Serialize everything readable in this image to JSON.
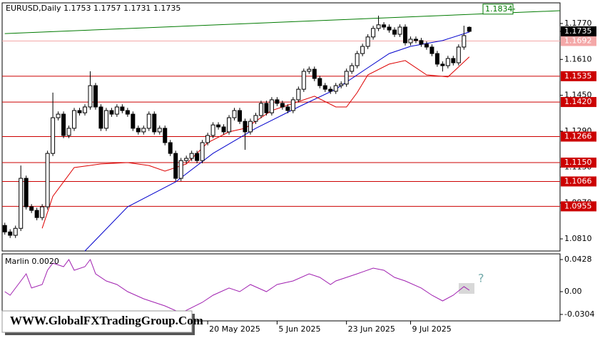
{
  "chart_data": [
    {
      "type": "candlestick",
      "title": "EURUSD,Daily  1.1753 1.1757 1.1731 1.1735",
      "xlim": [
        -0.5,
        104
      ],
      "xticks": [
        {
          "value": 38,
          "label": "20 May 2025"
        },
        {
          "value": 51,
          "label": "5 Jun 2025"
        },
        {
          "value": 64,
          "label": "23 Jun 2025"
        },
        {
          "value": 76,
          "label": "9 Jul 2025"
        }
      ],
      "ylim": [
        1.0756,
        1.1862
      ],
      "yticks": [
        {
          "value": 1.177,
          "label": "1.1770"
        },
        {
          "value": 1.161,
          "label": "1.1610"
        },
        {
          "value": 1.145,
          "label": "1.1450"
        },
        {
          "value": 1.129,
          "label": "1.1290"
        },
        {
          "value": 1.113,
          "label": "1.1130"
        },
        {
          "value": 1.097,
          "label": "1.0970"
        },
        {
          "value": 1.081,
          "label": "1.0810"
        }
      ],
      "open": [
        1.087,
        1.0841,
        1.0826,
        1.0857,
        1.108,
        1.0953,
        1.0937,
        1.0905,
        1.0953,
        1.1191,
        1.135,
        1.1366,
        1.1271,
        1.1303,
        1.1382,
        1.1372,
        1.1398,
        1.1493,
        1.1398,
        1.1303,
        1.1382,
        1.1366,
        1.1398,
        1.1382,
        1.1366,
        1.1303,
        1.1287,
        1.1303,
        1.1366,
        1.1287,
        1.1303,
        1.1239,
        1.1191,
        1.108,
        1.1159,
        1.1169,
        1.1191,
        1.1159,
        1.1239,
        1.1271,
        1.1318,
        1.1309,
        1.1287,
        1.135,
        1.1382,
        1.1334,
        1.1287,
        1.1334,
        1.136,
        1.1414,
        1.1372,
        1.143,
        1.1414,
        1.1398,
        1.1382,
        1.143,
        1.1477,
        1.1557,
        1.1566,
        1.1525,
        1.1493,
        1.1477,
        1.1468,
        1.1493,
        1.15,
        1.1557,
        1.1582,
        1.1636,
        1.1668,
        1.171,
        1.1748,
        1.1764,
        1.1754,
        1.1741,
        1.1722,
        1.1754,
        1.1684,
        1.17,
        1.1694,
        1.1678,
        1.1665,
        1.1636,
        1.1589,
        1.1582,
        1.1614,
        1.1595,
        1.1665,
        1.1753
      ],
      "high": [
        1.0882,
        1.0853,
        1.0869,
        1.1137,
        1.1092,
        1.0965,
        1.0949,
        1.0965,
        1.1203,
        1.1462,
        1.1378,
        1.1378,
        1.1315,
        1.1394,
        1.1394,
        1.141,
        1.1557,
        1.1505,
        1.141,
        1.1394,
        1.1394,
        1.141,
        1.141,
        1.1394,
        1.1378,
        1.1315,
        1.1315,
        1.1378,
        1.1378,
        1.1315,
        1.1315,
        1.1251,
        1.1203,
        1.1171,
        1.1181,
        1.1203,
        1.1203,
        1.1251,
        1.1283,
        1.133,
        1.133,
        1.1321,
        1.1362,
        1.1394,
        1.1394,
        1.1346,
        1.1346,
        1.1372,
        1.1426,
        1.1426,
        1.1442,
        1.1442,
        1.1426,
        1.141,
        1.1442,
        1.1489,
        1.1569,
        1.1578,
        1.1578,
        1.1537,
        1.1505,
        1.1489,
        1.1505,
        1.1512,
        1.1569,
        1.1594,
        1.1648,
        1.168,
        1.1722,
        1.176,
        1.1805,
        1.1776,
        1.1766,
        1.1753,
        1.1766,
        1.1766,
        1.1712,
        1.1712,
        1.1706,
        1.169,
        1.1677,
        1.1648,
        1.1601,
        1.1626,
        1.1626,
        1.1677,
        1.176,
        1.1757
      ],
      "low": [
        1.0829,
        1.0814,
        1.0814,
        1.0845,
        1.0941,
        1.0925,
        1.0893,
        1.0893,
        1.0941,
        1.1179,
        1.1338,
        1.1259,
        1.1259,
        1.1291,
        1.136,
        1.136,
        1.1386,
        1.1386,
        1.1291,
        1.1291,
        1.1354,
        1.1354,
        1.137,
        1.1354,
        1.1291,
        1.1275,
        1.1275,
        1.1291,
        1.1275,
        1.1275,
        1.1227,
        1.1179,
        1.1068,
        1.1068,
        1.1147,
        1.1157,
        1.1147,
        1.1147,
        1.1227,
        1.1259,
        1.1297,
        1.1275,
        1.1275,
        1.1338,
        1.1322,
        1.1207,
        1.1275,
        1.1322,
        1.1348,
        1.136,
        1.136,
        1.1402,
        1.1386,
        1.137,
        1.137,
        1.1418,
        1.1465,
        1.1545,
        1.1513,
        1.1481,
        1.1465,
        1.1456,
        1.1456,
        1.1481,
        1.1488,
        1.1545,
        1.157,
        1.1624,
        1.1656,
        1.1698,
        1.1736,
        1.1742,
        1.1729,
        1.171,
        1.171,
        1.1672,
        1.1672,
        1.1682,
        1.1666,
        1.1653,
        1.1624,
        1.1577,
        1.1556,
        1.157,
        1.1583,
        1.1583,
        1.1653,
        1.1731
      ],
      "close": [
        1.0841,
        1.0826,
        1.0857,
        1.108,
        1.0953,
        1.0937,
        1.0905,
        1.0953,
        1.1191,
        1.135,
        1.1366,
        1.1271,
        1.1303,
        1.1382,
        1.1372,
        1.1398,
        1.1493,
        1.1398,
        1.1303,
        1.1382,
        1.1366,
        1.1398,
        1.1382,
        1.1366,
        1.1303,
        1.1287,
        1.1303,
        1.1366,
        1.1287,
        1.1303,
        1.1239,
        1.1191,
        1.108,
        1.1159,
        1.1169,
        1.1191,
        1.1159,
        1.1239,
        1.1271,
        1.1318,
        1.1309,
        1.1287,
        1.135,
        1.1382,
        1.1334,
        1.1287,
        1.1334,
        1.136,
        1.1414,
        1.1372,
        1.143,
        1.1414,
        1.1398,
        1.1382,
        1.143,
        1.1477,
        1.1557,
        1.1566,
        1.1525,
        1.1493,
        1.1477,
        1.1468,
        1.1493,
        1.15,
        1.1557,
        1.1582,
        1.1636,
        1.1668,
        1.171,
        1.1748,
        1.1764,
        1.1754,
        1.1741,
        1.1722,
        1.1754,
        1.1684,
        1.17,
        1.1694,
        1.1678,
        1.1665,
        1.1636,
        1.1589,
        1.1582,
        1.1614,
        1.1595,
        1.1665,
        1.1716,
        1.1735
      ],
      "series": [
        {
          "color": "#0000cc",
          "x": [
            15,
            23,
            32,
            39,
            47,
            55,
            62,
            67,
            72,
            76,
            82,
            87
          ],
          "values": [
            1.0756,
            1.0953,
            1.1064,
            1.1191,
            1.1303,
            1.1398,
            1.1477,
            1.1557,
            1.1636,
            1.1668,
            1.1694,
            1.1732
          ]
        },
        {
          "color": "#dd0000",
          "x": [
            7,
            9,
            13,
            18,
            23,
            27,
            30,
            34,
            38,
            42,
            45,
            50,
            54,
            58,
            62,
            64,
            66,
            68,
            72,
            75,
            79,
            83,
            87
          ],
          "values": [
            1.0857,
            1.1,
            1.1128,
            1.1144,
            1.115,
            1.1137,
            1.1112,
            1.1144,
            1.1239,
            1.1287,
            1.1303,
            1.1382,
            1.1414,
            1.1446,
            1.1398,
            1.1398,
            1.1462,
            1.1541,
            1.1589,
            1.1605,
            1.1541,
            1.1532,
            1.1621
          ]
        }
      ],
      "levels": [
        {
          "value": 1.1535,
          "label": "1.1535"
        },
        {
          "value": 1.142,
          "label": "1.1420"
        },
        {
          "value": 1.1266,
          "label": "1.1266"
        },
        {
          "value": 1.115,
          "label": "1.1150"
        },
        {
          "value": 1.1066,
          "label": "1.1066"
        },
        {
          "value": 1.0955,
          "label": "1.0955"
        }
      ],
      "level_color": "#cc0000",
      "trend_line": {
        "color": "#007a00",
        "x": [
          0,
          104
        ],
        "values": [
          1.1725,
          1.1827
        ],
        "label": {
          "value": 1.1834,
          "label": "1.1834"
        }
      },
      "price_line": {
        "value": 1.1692,
        "label": "1.1692",
        "color": "#f4a8a8"
      },
      "last_price": {
        "value": 1.1735,
        "label": "1.1735"
      }
    },
    {
      "type": "line",
      "title": "Marlin 0.0020",
      "annotation": "?",
      "xlim": [
        -0.5,
        104
      ],
      "ylim": [
        -0.039,
        0.0504
      ],
      "yticks": [
        0.0428,
        {
          "value": 0,
          "label": "0.00"
        },
        -0.0304
      ],
      "series": [
        {
          "color": "#a020b0",
          "x": [
            0,
            1,
            3,
            4,
            5,
            7,
            8,
            9,
            11,
            12,
            13,
            15,
            16,
            17,
            19,
            21,
            23,
            26,
            30,
            33,
            37,
            39,
            42,
            44,
            46,
            49,
            51,
            54,
            57,
            59,
            61,
            62,
            64,
            66,
            69,
            71,
            73,
            75,
            78,
            80,
            82,
            84,
            86,
            87
          ],
          "values": [
            0,
            -0.0048,
            0.0143,
            0.0238,
            0.0048,
            0.0095,
            0.0285,
            0.038,
            0.0333,
            0.0428,
            0.0285,
            0.0333,
            0.0428,
            0.0238,
            0.0143,
            0.0095,
            0,
            -0.0095,
            -0.019,
            -0.0285,
            -0.0143,
            -0.0048,
            0.0048,
            0,
            0.0095,
            0,
            0.0095,
            0.0143,
            0.0238,
            0.019,
            0.0095,
            0.0143,
            0.019,
            0.0238,
            0.0314,
            0.0285,
            0.019,
            0.0143,
            0.0048,
            -0.0048,
            -0.0124,
            -0.0048,
            0.0067,
            0.0019
          ]
        }
      ]
    }
  ],
  "watermark": "WWW.GlobalFXTradingGroup.Com"
}
